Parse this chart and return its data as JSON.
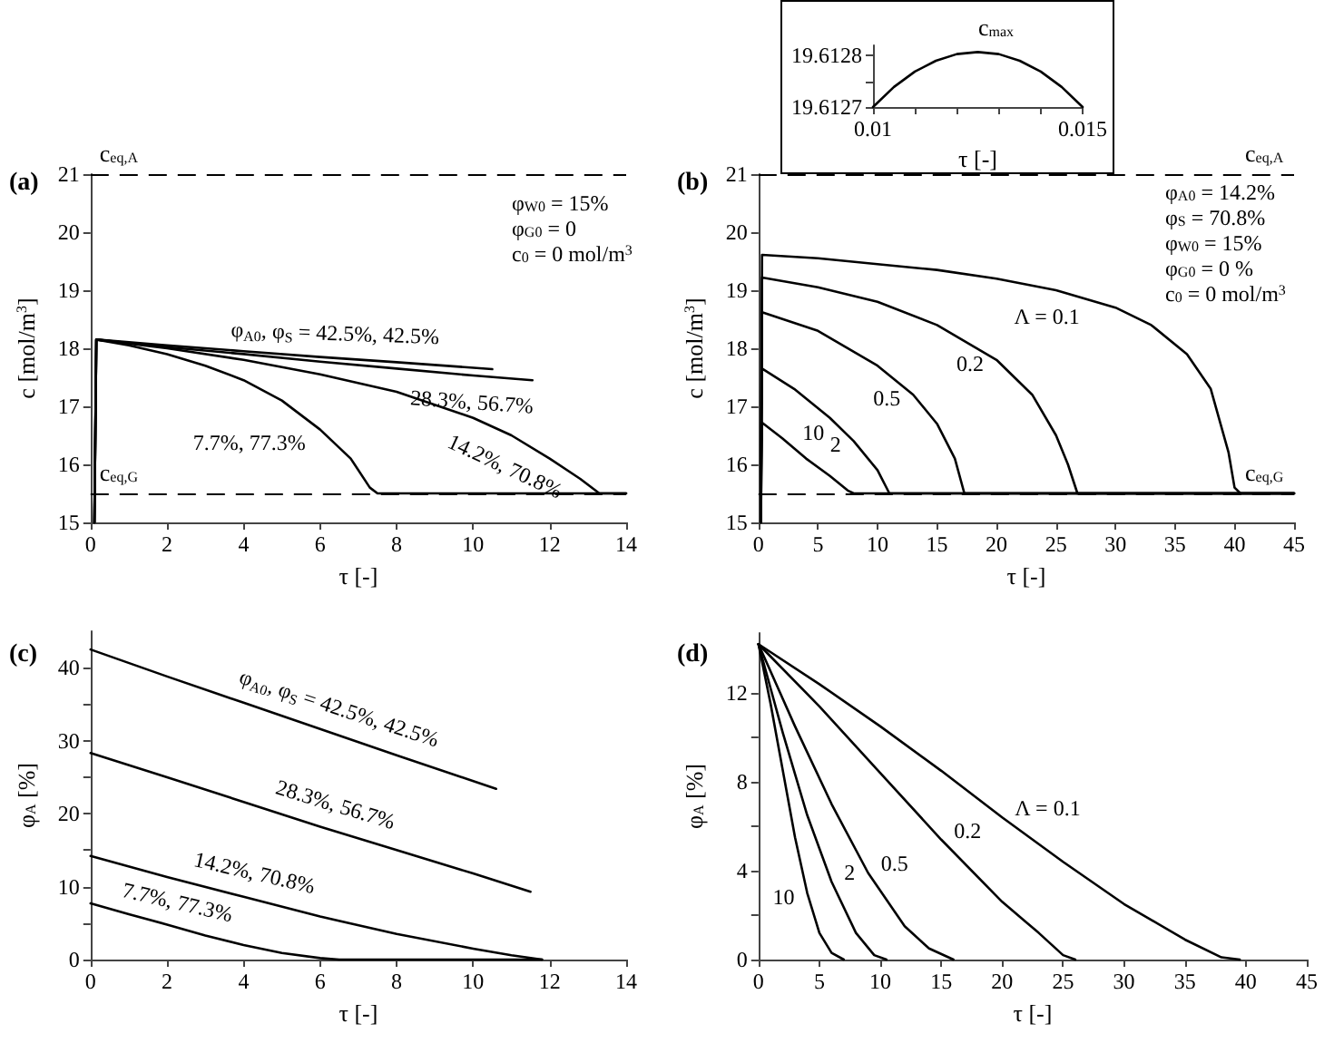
{
  "chart_data": [
    {
      "type": "line",
      "title": "(a)",
      "xlabel": "τ [-]",
      "ylabel": "c [mol/m$^{3}$]",
      "xlim": [
        0,
        14
      ],
      "xticks": [
        0,
        2,
        4,
        6,
        8,
        10,
        12,
        14
      ],
      "ylim": [
        15,
        21
      ],
      "yticks": [
        15,
        16,
        17,
        18,
        19,
        20,
        21
      ],
      "grid": false,
      "marker": "none",
      "line_style": "solid",
      "series": [
        {
          "name": "φ$_{A0}$, φ$_{S}$ = 42.5%, 42.5%",
          "color": "#000000",
          "x": [
            0.1,
            0.15,
            2,
            4,
            6,
            8,
            10.5
          ],
          "values": [
            15,
            18.15,
            18.05,
            17.95,
            17.85,
            17.76,
            17.64
          ]
        },
        {
          "name": "28.3%, 56.7%",
          "color": "#000000",
          "x": [
            0.1,
            0.15,
            2,
            4,
            6,
            8,
            10,
            11.55
          ],
          "values": [
            15,
            18.15,
            18.02,
            17.9,
            17.77,
            17.65,
            17.53,
            17.45
          ]
        },
        {
          "name": "14.2%, 70.8%",
          "color": "#000000",
          "x": [
            0.1,
            0.15,
            2,
            4,
            6,
            8,
            10,
            11,
            12,
            12.8,
            13.3,
            14
          ],
          "values": [
            15,
            18.15,
            18.0,
            17.8,
            17.55,
            17.25,
            16.8,
            16.5,
            16.1,
            15.75,
            15.5,
            15.5
          ]
        },
        {
          "name": "7.7%, 77.3%",
          "color": "#000000",
          "x": [
            0.1,
            0.15,
            1,
            2,
            3,
            4,
            5,
            6,
            6.8,
            7.3,
            7.5,
            14
          ],
          "values": [
            15,
            18.15,
            18.05,
            17.9,
            17.7,
            17.45,
            17.1,
            16.6,
            16.1,
            15.6,
            15.5,
            15.5
          ]
        }
      ],
      "ref_lines": [
        {
          "axis": "y",
          "value": 21,
          "label": "c$_{eq,A}$",
          "color": "#000000",
          "line_style": "dashed"
        },
        {
          "axis": "y",
          "value": 15.5,
          "label": "c$_{eq,G}$",
          "color": "#000000",
          "line_style": "dashed"
        }
      ],
      "annotations": [
        "φ$_{W0}$ = 15%",
        "φ$_{G0}$ = 0",
        "c$_{0}$ = 0 mol/m$^{3}$"
      ]
    },
    {
      "type": "line",
      "title": "(b)",
      "xlabel": "τ [-]",
      "ylabel": "c [mol/m$^{3}$]",
      "xlim": [
        0,
        45
      ],
      "xticks": [
        0,
        5,
        10,
        15,
        20,
        25,
        30,
        35,
        40,
        45
      ],
      "ylim": [
        15,
        21
      ],
      "yticks": [
        15,
        16,
        17,
        18,
        19,
        20,
        21
      ],
      "grid": false,
      "marker": "none",
      "line_style": "solid",
      "series": [
        {
          "name": "Λ = 0.1",
          "color": "#000000",
          "x": [
            0.2,
            0.3,
            5,
            10,
            15,
            20,
            25,
            30,
            33,
            36,
            38,
            39.5,
            40,
            40.5,
            45
          ],
          "values": [
            15,
            19.61,
            19.55,
            19.45,
            19.35,
            19.2,
            19.0,
            18.7,
            18.4,
            17.9,
            17.3,
            16.2,
            15.6,
            15.5,
            15.5
          ]
        },
        {
          "name": "0.2",
          "color": "#000000",
          "x": [
            0.2,
            0.3,
            5,
            10,
            15,
            20,
            23,
            25,
            26,
            26.8,
            45
          ],
          "values": [
            15,
            19.22,
            19.05,
            18.8,
            18.4,
            17.8,
            17.2,
            16.5,
            16.0,
            15.5,
            15.5
          ]
        },
        {
          "name": "0.5",
          "color": "#000000",
          "x": [
            0.2,
            0.3,
            5,
            10,
            13,
            15,
            16.5,
            17.3,
            45
          ],
          "values": [
            15,
            18.62,
            18.3,
            17.7,
            17.2,
            16.7,
            16.1,
            15.5,
            15.5
          ]
        },
        {
          "name": "2",
          "color": "#000000",
          "x": [
            0.2,
            0.3,
            3,
            6,
            8,
            10,
            11,
            45
          ],
          "values": [
            15,
            17.65,
            17.3,
            16.8,
            16.4,
            15.9,
            15.5,
            15.5
          ]
        },
        {
          "name": "10",
          "color": "#000000",
          "x": [
            0.2,
            0.3,
            2,
            4,
            6,
            7.5,
            8,
            45
          ],
          "values": [
            15,
            16.72,
            16.45,
            16.1,
            15.8,
            15.55,
            15.5,
            15.5
          ]
        }
      ],
      "ref_lines": [
        {
          "axis": "y",
          "value": 21,
          "label": "c$_{eq,A}$",
          "color": "#000000",
          "line_style": "dashed"
        },
        {
          "axis": "y",
          "value": 15.5,
          "label": "c$_{eq,G}$",
          "color": "#000000",
          "line_style": "dashed"
        }
      ],
      "annotations": [
        "φ$_{A0}$ = 14.2%",
        "φ$_{S}$ = 70.8%",
        "φ$_{W0}$ = 15%",
        "φ$_{G0}$ = 0 %",
        "c$_{0}$ = 0 mol/m$^{3}$"
      ]
    },
    {
      "type": "line",
      "xlabel": "τ [-]",
      "xlim": [
        0.01,
        0.015
      ],
      "xticks": [
        0.01,
        {
          "value": 0.011,
          "label": null
        },
        {
          "value": 0.012,
          "label": null
        },
        {
          "value": 0.013,
          "label": null
        },
        {
          "value": 0.014,
          "label": null
        },
        0.015
      ],
      "ylim": [
        19.6127,
        19.61282
      ],
      "yticks": [
        19.6127,
        {
          "value": 19.61275,
          "label": null
        },
        19.6128
      ],
      "grid": false,
      "marker": "none",
      "line_style": "solid",
      "series": [
        {
          "color": "#000000",
          "x": [
            0.01,
            0.0105,
            0.011,
            0.0115,
            0.012,
            0.0125,
            0.013,
            0.0135,
            0.014,
            0.0145,
            0.015
          ],
          "values": [
            19.6127,
            19.612739,
            19.612769,
            19.61279,
            19.612803,
            19.612807,
            19.612803,
            19.61279,
            19.612769,
            19.612739,
            19.6127
          ]
        }
      ],
      "annotations": [
        {
          "text": "c$_{max}$",
          "x": 0.0125,
          "y": 19.612807
        }
      ]
    },
    {
      "type": "line",
      "title": "(c)",
      "xlabel": "τ [-]",
      "ylabel": "φ$_{A}$ [%]",
      "xlim": [
        0,
        14
      ],
      "xticks": [
        0,
        2,
        4,
        6,
        8,
        10,
        12,
        14
      ],
      "ylim": [
        0,
        45
      ],
      "yticks": [
        0,
        {
          "value": 5,
          "label": null
        },
        10,
        {
          "value": 15,
          "label": null
        },
        20,
        {
          "value": 25,
          "label": null
        },
        30,
        {
          "value": 35,
          "label": null
        },
        40
      ],
      "grid": false,
      "marker": "none",
      "line_style": "solid",
      "series": [
        {
          "name": "φ$_{A0}$, φ$_{S}$ = 42.5%, 42.5%",
          "color": "#000000",
          "x": [
            0,
            2,
            4,
            6,
            8,
            10.6
          ],
          "values": [
            42.5,
            38.8,
            35.2,
            31.6,
            28,
            23.4
          ]
        },
        {
          "name": "28.3%, 56.7%",
          "color": "#000000",
          "x": [
            0,
            2,
            4,
            6,
            8,
            10,
            11.5
          ],
          "values": [
            28.3,
            25,
            21.6,
            18.2,
            15,
            11.8,
            9.3
          ]
        },
        {
          "name": "14.2%, 70.8%",
          "color": "#000000",
          "x": [
            0,
            2,
            4,
            6,
            8,
            10,
            11,
            11.8
          ],
          "values": [
            14.2,
            11.3,
            8.6,
            5.9,
            3.5,
            1.5,
            0.6,
            0
          ]
        },
        {
          "name": "7.7%, 77.3%",
          "color": "#000000",
          "x": [
            0,
            1,
            2,
            3,
            4,
            5,
            6,
            6.5,
            11.8
          ],
          "values": [
            7.7,
            6.2,
            4.8,
            3.3,
            2.0,
            0.9,
            0.2,
            0,
            0
          ]
        }
      ]
    },
    {
      "type": "line",
      "title": "(d)",
      "xlabel": "τ [-]",
      "ylabel": "φ$_{A}$ [%]",
      "xlim": [
        0,
        45
      ],
      "xticks": [
        0,
        5,
        10,
        15,
        20,
        25,
        30,
        35,
        40,
        45
      ],
      "ylim": [
        0,
        14.7
      ],
      "yticks": [
        0,
        {
          "value": 2,
          "label": null
        },
        4,
        {
          "value": 6,
          "label": null
        },
        8,
        {
          "value": 10,
          "label": null
        },
        12
      ],
      "grid": false,
      "marker": "none",
      "line_style": "solid",
      "series": [
        {
          "name": "Λ = 0.1",
          "color": "#000000",
          "x": [
            0,
            5,
            10,
            15,
            20,
            25,
            30,
            35,
            38,
            39.5
          ],
          "values": [
            14.2,
            12.4,
            10.5,
            8.5,
            6.4,
            4.4,
            2.5,
            0.9,
            0.1,
            0
          ]
        },
        {
          "name": "0.2",
          "color": "#000000",
          "x": [
            0,
            5,
            10,
            15,
            20,
            23,
            25,
            26
          ],
          "values": [
            14.2,
            11.4,
            8.4,
            5.4,
            2.6,
            1.2,
            0.2,
            0
          ]
        },
        {
          "name": "0.5",
          "color": "#000000",
          "x": [
            0,
            3,
            6,
            9,
            12,
            14,
            16
          ],
          "values": [
            14.2,
            10.5,
            7,
            3.9,
            1.5,
            0.5,
            0
          ]
        },
        {
          "name": "2",
          "color": "#000000",
          "x": [
            0,
            2,
            4,
            6,
            8,
            9.5,
            10.5
          ],
          "values": [
            14.2,
            10.2,
            6.5,
            3.5,
            1.2,
            0.2,
            0
          ]
        },
        {
          "name": "10",
          "color": "#000000",
          "x": [
            0,
            1,
            2,
            3,
            4,
            5,
            6,
            7
          ],
          "values": [
            14.2,
            11.5,
            8.5,
            5.5,
            3,
            1.2,
            0.3,
            0
          ]
        }
      ]
    }
  ]
}
